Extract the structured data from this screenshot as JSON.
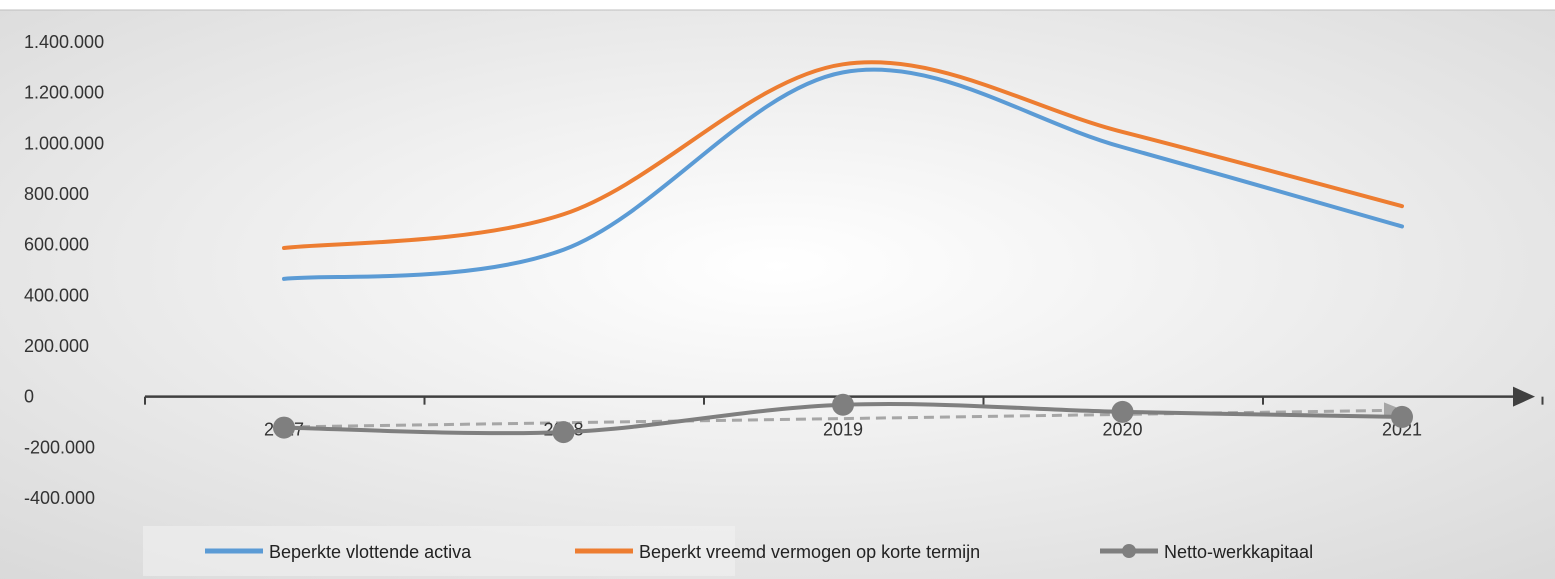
{
  "chart_data": {
    "type": "line",
    "categories": [
      "2017",
      "2018",
      "2019",
      "2020",
      "2021"
    ],
    "series": [
      {
        "name": "Beperkte vlottende activa",
        "values": [
          465000,
          580000,
          1280000,
          985000,
          672000
        ],
        "color": "#5b9bd5",
        "marker": false
      },
      {
        "name": "Beperkt vreemd vermogen op korte termijn",
        "values": [
          587000,
          720000,
          1312000,
          1045000,
          752000
        ],
        "color": "#ed7d31",
        "marker": false
      },
      {
        "name": "Netto-werkkapitaal",
        "values": [
          -122000,
          -140000,
          -32000,
          -60000,
          -80000
        ],
        "color": "#7f7f7f",
        "marker": true
      }
    ],
    "trendline": {
      "of_series": "Netto-werkkapitaal",
      "color": "#a6a6a6",
      "dashed": true
    },
    "y_ticks": [
      "1.400.000",
      "1.200.000",
      "1.000.000",
      "800.000",
      "600.000",
      "400.000",
      "200.000",
      "0",
      "-200.000",
      "-400.000"
    ],
    "ylim": [
      -400000,
      1400000
    ],
    "smooth": true,
    "legend_position": "bottom",
    "background": {
      "center": "#ffffff",
      "edge": "#d9d9d9"
    }
  }
}
